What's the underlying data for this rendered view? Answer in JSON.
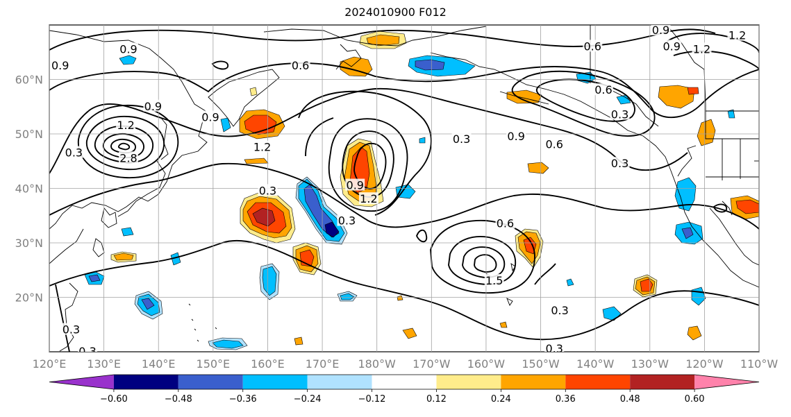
{
  "title": "2024010900 F012",
  "map": {
    "lon_range": [
      120,
      250
    ],
    "lat_range": [
      10,
      70
    ],
    "lon_ticks": [
      {
        "lon": 120,
        "label": "120°E"
      },
      {
        "lon": 130,
        "label": "130°E"
      },
      {
        "lon": 140,
        "label": "140°E"
      },
      {
        "lon": 150,
        "label": "150°E"
      },
      {
        "lon": 160,
        "label": "160°E"
      },
      {
        "lon": 170,
        "label": "170°E"
      },
      {
        "lon": 180,
        "label": "180°W"
      },
      {
        "lon": 190,
        "label": "170°W"
      },
      {
        "lon": 200,
        "label": "160°W"
      },
      {
        "lon": 210,
        "label": "150°W"
      },
      {
        "lon": 220,
        "label": "140°W"
      },
      {
        "lon": 230,
        "label": "130°W"
      },
      {
        "lon": 240,
        "label": "120°W"
      },
      {
        "lon": 250,
        "label": "110°W"
      }
    ],
    "lat_ticks": [
      {
        "lat": 20,
        "label": "20°N"
      },
      {
        "lat": 30,
        "label": "30°N"
      },
      {
        "lat": 40,
        "label": "40°N"
      },
      {
        "lat": 50,
        "label": "50°N"
      },
      {
        "lat": 60,
        "label": "60°N"
      }
    ],
    "grid": true,
    "contour_color": "#000000",
    "contour_labels": [
      {
        "lon": 134.5,
        "lat": 65.5,
        "label": "0.9"
      },
      {
        "lon": 122,
        "lat": 62.5,
        "label": "0.9"
      },
      {
        "lon": 166,
        "lat": 62.5,
        "label": "0.6"
      },
      {
        "lon": 219.5,
        "lat": 66,
        "label": "0.6"
      },
      {
        "lon": 221.5,
        "lat": 58,
        "label": "0.6"
      },
      {
        "lon": 224.5,
        "lat": 53.5,
        "label": "0.3"
      },
      {
        "lon": 205.5,
        "lat": 49.5,
        "label": "0.9"
      },
      {
        "lon": 212.5,
        "lat": 48,
        "label": "0.6"
      },
      {
        "lon": 195.5,
        "lat": 49,
        "label": "0.3"
      },
      {
        "lon": 139,
        "lat": 55,
        "label": "0.9"
      },
      {
        "lon": 149.5,
        "lat": 53,
        "label": "0.9"
      },
      {
        "lon": 134,
        "lat": 51.5,
        "label": "1.2"
      },
      {
        "lon": 159,
        "lat": 47.5,
        "label": "1.2"
      },
      {
        "lon": 124.5,
        "lat": 46.5,
        "label": "0.3"
      },
      {
        "lon": 134.5,
        "lat": 45.5,
        "label": "2.8"
      },
      {
        "lon": 176,
        "lat": 40.5,
        "label": "0.9"
      },
      {
        "lon": 178.5,
        "lat": 38,
        "label": "1.2"
      },
      {
        "lon": 160,
        "lat": 39.5,
        "label": "0.3"
      },
      {
        "lon": 174.5,
        "lat": 34,
        "label": "0.3"
      },
      {
        "lon": 224.5,
        "lat": 44.5,
        "label": "0.3"
      },
      {
        "lon": 203.5,
        "lat": 33.5,
        "label": "0.6"
      },
      {
        "lon": 201.5,
        "lat": 23,
        "label": "1.5"
      },
      {
        "lon": 213.5,
        "lat": 17.5,
        "label": "0.3"
      },
      {
        "lon": 212.5,
        "lat": 10.5,
        "label": "0.3"
      },
      {
        "lon": 124,
        "lat": 14,
        "label": "0.3"
      },
      {
        "lon": 127,
        "lat": 10,
        "label": "0.3"
      },
      {
        "lon": 246,
        "lat": 68,
        "label": "1.2"
      },
      {
        "lon": 239.5,
        "lat": 65.5,
        "label": "1.2"
      },
      {
        "lon": 232,
        "lat": 69,
        "label": "0.9"
      },
      {
        "lon": 234,
        "lat": 66,
        "label": "0.9"
      }
    ]
  },
  "colorbar": {
    "colors": [
      "#9932CC",
      "#000080",
      "#3A5FCD",
      "#00BFFF",
      "#B0E2FF",
      "#FFFFFF",
      "#FFEC8B",
      "#FFA500",
      "#FF4500",
      "#B22222",
      "#FF82AB"
    ],
    "labels": [
      "−0.60",
      "−0.48",
      "−0.36",
      "−0.24",
      "−0.12",
      "0.12",
      "0.24",
      "0.36",
      "0.48",
      "0.60"
    ]
  }
}
